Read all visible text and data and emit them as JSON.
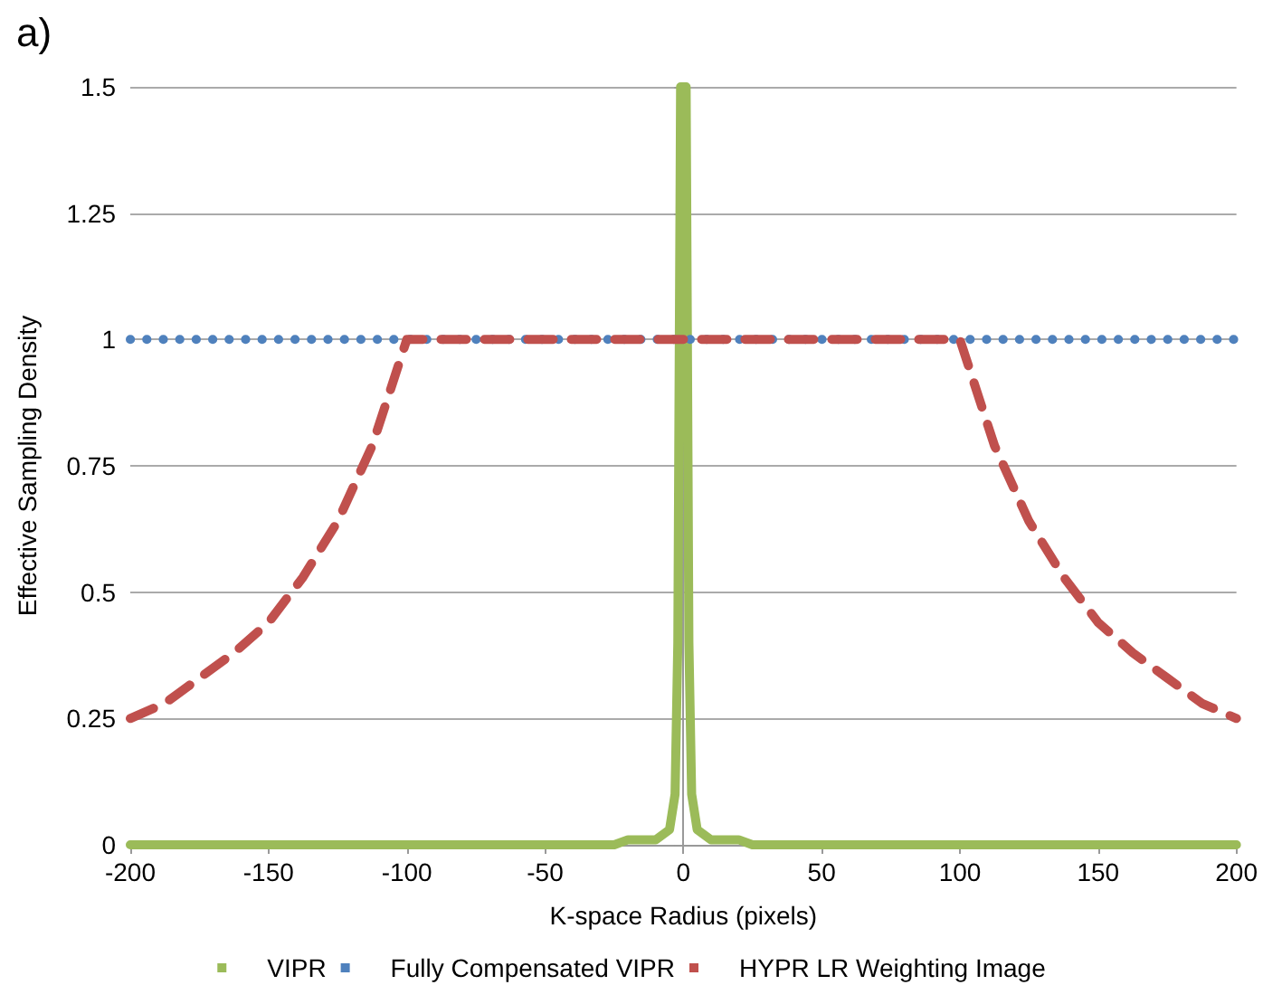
{
  "chart_data": {
    "type": "line",
    "title": "a)",
    "xlabel": "K-space Radius (pixels)",
    "ylabel": "Effective Sampling Density",
    "xlim": [
      -200,
      200
    ],
    "xticks": [
      -200,
      -150,
      -100,
      -50,
      0,
      50,
      100,
      150,
      200
    ],
    "ylim": [
      0,
      1.5
    ],
    "yticks": [
      0,
      0.25,
      0.5,
      0.75,
      1,
      1.25,
      1.5
    ],
    "grid": "y",
    "legend": "bottom",
    "marker": "none",
    "series": [
      {
        "name": "VIPR",
        "color": "#9bbb59",
        "line_style": "solid",
        "x": [
          -200,
          -25,
          -20,
          -10,
          -5,
          -3,
          -2,
          -1,
          0,
          1,
          2,
          3,
          5,
          10,
          20,
          25,
          200
        ],
        "values": [
          0,
          0,
          0.01,
          0.01,
          0.03,
          0.1,
          0.4,
          1.5,
          1.5,
          1.5,
          0.4,
          0.1,
          0.03,
          0.01,
          0.01,
          0,
          0
        ]
      },
      {
        "name": "Fully Compensated VIPR",
        "color": "#4f81bd",
        "line_style": "dotted",
        "x": [
          -200,
          200
        ],
        "values": [
          1,
          1
        ]
      },
      {
        "name": "HYPR LR Weighting Image",
        "color": "#c0504d",
        "line_style": "dashed",
        "x": [
          -200,
          -187.5,
          -175,
          -162.5,
          -150,
          -137.5,
          -125,
          -112.5,
          -100,
          100,
          112.5,
          125,
          137.5,
          150,
          162.5,
          175,
          187.5,
          200
        ],
        "values": [
          0.25,
          0.28,
          0.33,
          0.38,
          0.44,
          0.53,
          0.64,
          0.79,
          1,
          1,
          0.79,
          0.64,
          0.53,
          0.44,
          0.38,
          0.33,
          0.28,
          0.25
        ]
      }
    ]
  }
}
